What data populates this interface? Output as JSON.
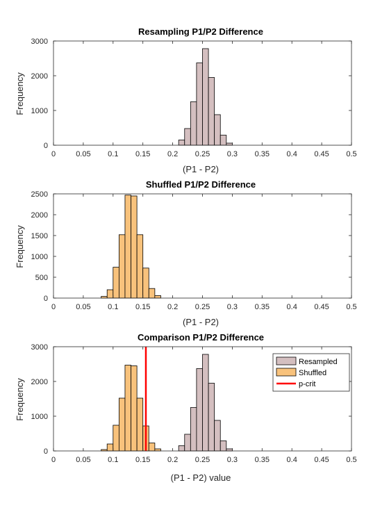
{
  "chart_data": [
    {
      "type": "bar",
      "title": "Resampling P1/P2 Difference",
      "xlabel": "(P1 - P2)",
      "ylabel": "Frequency",
      "xlim": [
        0,
        0.5
      ],
      "ylim": [
        0,
        3000
      ],
      "xticks": [
        "0",
        "0.05",
        "0.1",
        "0.15",
        "0.2",
        "0.25",
        "0.3",
        "0.35",
        "0.4",
        "0.45",
        "0.5"
      ],
      "yticks": [
        "0",
        "1000",
        "2000",
        "3000"
      ],
      "bin_width": 0.01,
      "series": [
        {
          "bins": [
            0.21,
            0.22,
            0.23,
            0.24,
            0.25,
            0.26,
            0.27,
            0.28,
            0.29
          ],
          "values": [
            150,
            480,
            1250,
            2370,
            2780,
            1950,
            880,
            290,
            60
          ],
          "color": "#d4bfc0"
        }
      ]
    },
    {
      "type": "bar",
      "title": "Shuffled P1/P2 Difference",
      "xlabel": "(P1 - P2)",
      "ylabel": "Frequency",
      "xlim": [
        0,
        0.5
      ],
      "ylim": [
        0,
        2500
      ],
      "xticks": [
        "0",
        "0.05",
        "0.1",
        "0.15",
        "0.2",
        "0.25",
        "0.3",
        "0.35",
        "0.4",
        "0.45",
        "0.5"
      ],
      "yticks": [
        "0",
        "500",
        "1000",
        "1500",
        "2000",
        "2500"
      ],
      "bin_width": 0.01,
      "series": [
        {
          "bins": [
            0.08,
            0.09,
            0.1,
            0.11,
            0.12,
            0.13,
            0.14,
            0.15,
            0.16,
            0.17
          ],
          "values": [
            40,
            200,
            740,
            1520,
            2470,
            2450,
            1520,
            720,
            230,
            60
          ],
          "color": "#f8c27c"
        }
      ]
    },
    {
      "type": "bar",
      "title": "Comparison P1/P2 Difference",
      "xlabel": "(P1 - P2) value",
      "ylabel": "Frequency",
      "xlim": [
        0,
        0.5
      ],
      "ylim": [
        0,
        3000
      ],
      "xticks": [
        "0",
        "0.05",
        "0.1",
        "0.15",
        "0.2",
        "0.25",
        "0.3",
        "0.35",
        "0.4",
        "0.45",
        "0.5"
      ],
      "yticks": [
        "0",
        "1000",
        "2000",
        "3000"
      ],
      "bin_width": 0.01,
      "legend_position": "top-right",
      "series": [
        {
          "name": "Resampled",
          "bins": [
            0.21,
            0.22,
            0.23,
            0.24,
            0.25,
            0.26,
            0.27,
            0.28,
            0.29
          ],
          "values": [
            150,
            480,
            1250,
            2370,
            2780,
            1950,
            880,
            290,
            60
          ],
          "color": "#d4bfc0"
        },
        {
          "name": "Shuffled",
          "bins": [
            0.08,
            0.09,
            0.1,
            0.11,
            0.12,
            0.13,
            0.14,
            0.15,
            0.16,
            0.17
          ],
          "values": [
            40,
            200,
            740,
            1520,
            2470,
            2450,
            1520,
            720,
            230,
            60
          ],
          "color": "#f8c27c"
        }
      ],
      "vline": {
        "name": "p-crit",
        "x": 0.155,
        "color": "#ff0000"
      }
    }
  ]
}
